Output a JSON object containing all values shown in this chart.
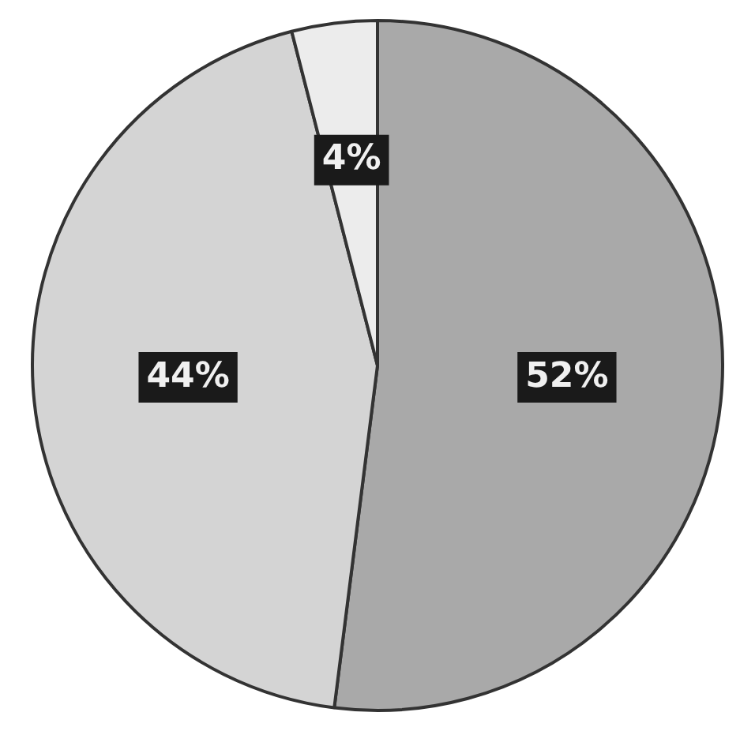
{
  "chart_data": {
    "type": "pie",
    "categories": [
      null,
      null,
      null
    ],
    "values": [
      52,
      44,
      4
    ],
    "colors": [
      "#a9a9a9",
      "#d4d4d4",
      "#ececec"
    ],
    "value_labels": [
      "52%",
      "44%",
      "4%"
    ]
  }
}
